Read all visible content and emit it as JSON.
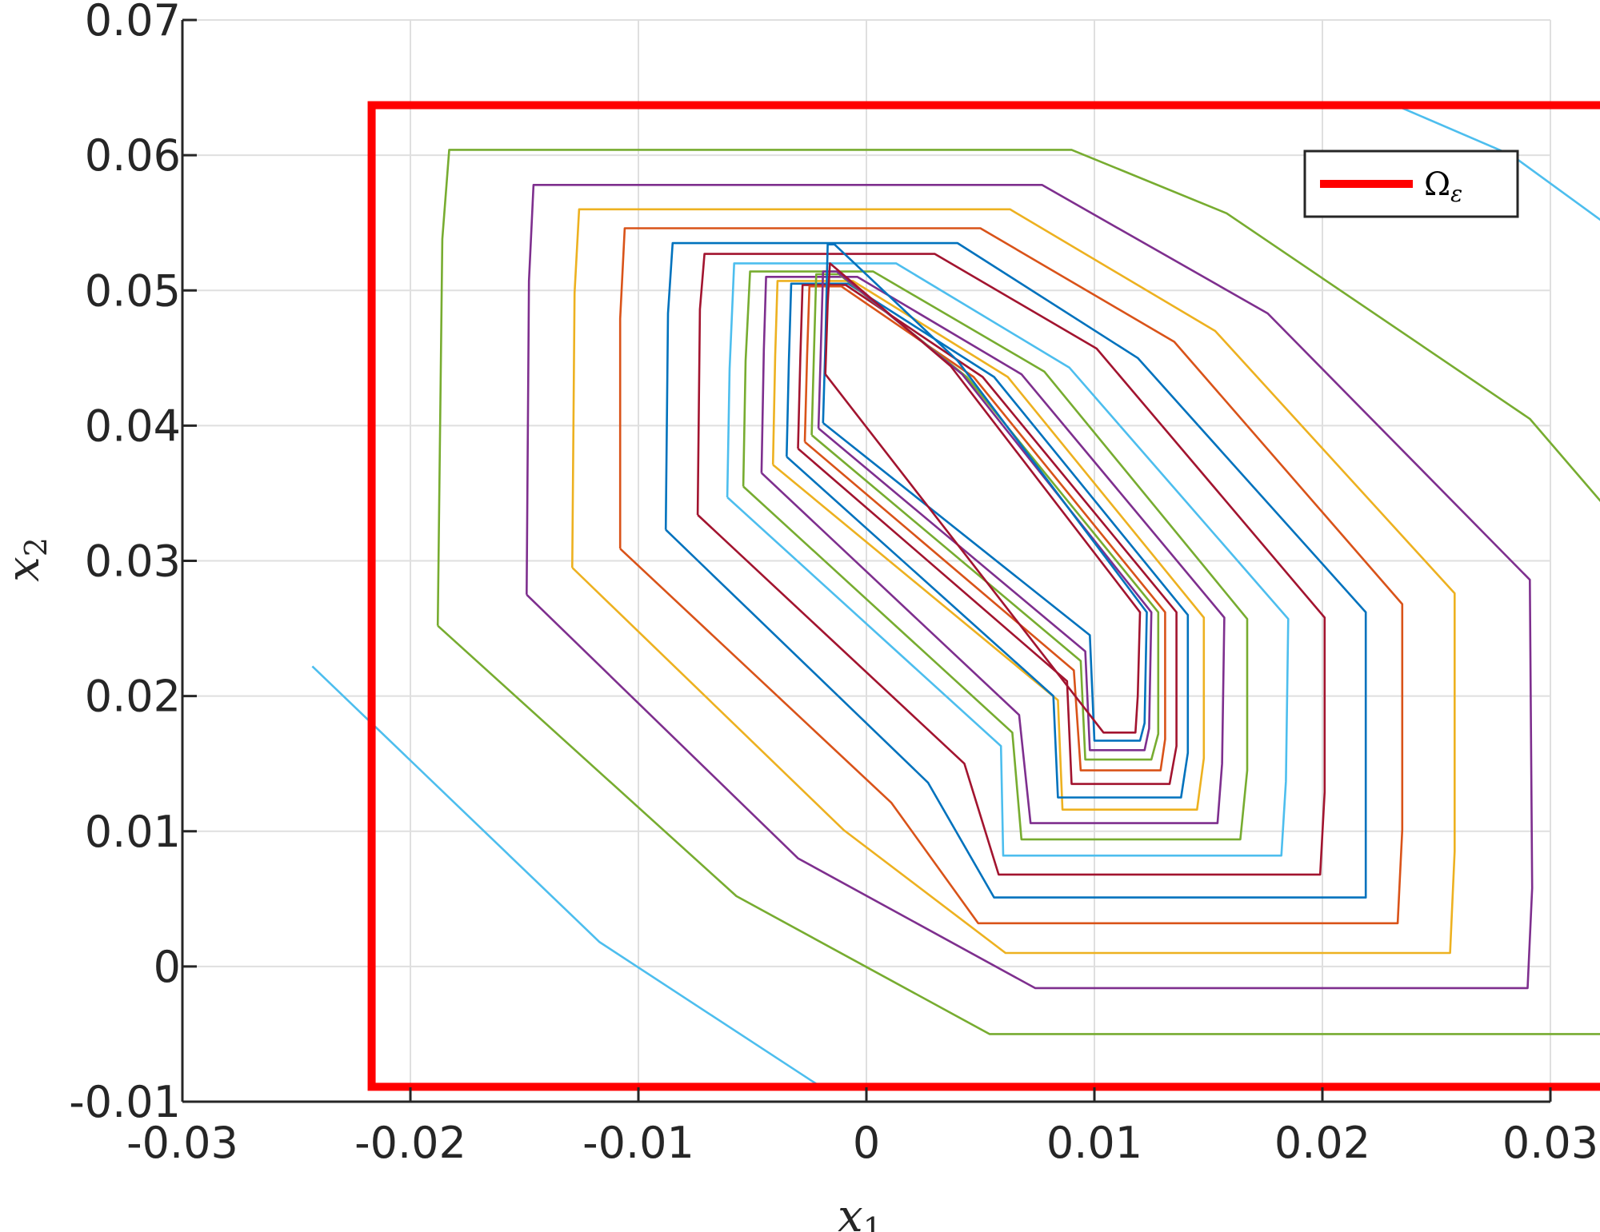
{
  "chart_data": {
    "type": "line",
    "xlabel": {
      "base": "x",
      "sub": "1"
    },
    "ylabel": {
      "base": "x",
      "sub": "2"
    },
    "xlim": [
      -0.03,
      0.03
    ],
    "ylim": [
      -0.01,
      0.07
    ],
    "xticks": [
      -0.03,
      -0.02,
      -0.01,
      0,
      0.01,
      0.02,
      0.03
    ],
    "xtick_labels": [
      "-0.03",
      "-0.02",
      "-0.01",
      "0",
      "0.01",
      "0.02",
      "0.03"
    ],
    "yticks": [
      -0.01,
      0,
      0.01,
      0.02,
      0.03,
      0.04,
      0.05,
      0.06,
      0.07
    ],
    "ytick_labels": [
      "-0.01",
      "0",
      "0.01",
      "0.02",
      "0.03",
      "0.04",
      "0.05",
      "0.06",
      "0.07"
    ],
    "grid": true,
    "legend": {
      "location": "top-right",
      "entries": [
        {
          "base": "Ω",
          "sub": "ε",
          "color": "#ff0000"
        }
      ]
    },
    "region": {
      "name": "Ω_ε",
      "color": "#ff0000",
      "x": [
        -0.0217,
        0.0362
      ],
      "y": [
        -0.0089,
        0.0637
      ]
    },
    "series": [
      {
        "color": "#4dbeee",
        "x": [
          -0.0243,
          -0.0117,
          -0.002
        ],
        "y": [
          0.0222,
          0.0018,
          -0.0089
        ]
      },
      {
        "color": "#4dbeee",
        "x": [
          0.0232,
          0.0283,
          0.034,
          0.0362
        ],
        "y": [
          0.0637,
          0.06,
          0.053,
          0.0427
        ]
      },
      {
        "color": "#77ac30",
        "x": [
          -0.0188,
          -0.0186,
          -0.0183,
          0.009,
          0.0158,
          0.0291,
          0.0343,
          0.0343,
          0.0339,
          0.0054,
          -0.0057,
          -0.0188
        ],
        "y": [
          0.0252,
          0.0538,
          0.0604,
          0.0604,
          0.0557,
          0.0405,
          0.0303,
          0.0023,
          -0.005,
          -0.005,
          0.0052,
          0.0252
        ]
      },
      {
        "color": "#7e2f8e",
        "x": [
          -0.0149,
          -0.0148,
          -0.0146,
          0.0077,
          0.0176,
          0.0291,
          0.0292,
          0.029,
          0.0074,
          -0.003,
          -0.0149
        ],
        "y": [
          0.0275,
          0.0507,
          0.0578,
          0.0578,
          0.0483,
          0.0286,
          0.0058,
          -0.0016,
          -0.0016,
          0.008,
          0.0275
        ]
      },
      {
        "color": "#edb120",
        "x": [
          -0.0129,
          -0.0128,
          -0.0126,
          0.0063,
          0.0153,
          0.0258,
          0.0258,
          0.0256,
          0.0061,
          -0.001,
          -0.0129
        ],
        "y": [
          0.0295,
          0.0498,
          0.056,
          0.056,
          0.047,
          0.0276,
          0.0085,
          0.001,
          0.001,
          0.0101,
          0.0295
        ]
      },
      {
        "color": "#d95319",
        "x": [
          -0.0108,
          -0.0108,
          -0.0106,
          0.005,
          0.0135,
          0.0235,
          0.0235,
          0.0233,
          0.0049,
          0.0011,
          -0.0108
        ],
        "y": [
          0.0309,
          0.0479,
          0.0546,
          0.0546,
          0.0462,
          0.0268,
          0.0101,
          0.0032,
          0.0032,
          0.0121,
          0.0309
        ]
      },
      {
        "color": "#0072bd",
        "x": [
          -0.0088,
          -0.0087,
          -0.0085,
          0.004,
          0.0119,
          0.0219,
          0.0219,
          0.0219,
          0.0056,
          0.0027,
          -0.0088
        ],
        "y": [
          0.0323,
          0.0483,
          0.0535,
          0.0535,
          0.045,
          0.0262,
          0.0114,
          0.0051,
          0.0051,
          0.0136,
          0.0323
        ]
      },
      {
        "color": "#a2142f",
        "x": [
          -0.0074,
          -0.0073,
          -0.0071,
          0.003,
          0.0101,
          0.0201,
          0.0201,
          0.0199,
          0.0058,
          0.0043,
          -0.0074
        ],
        "y": [
          0.0334,
          0.0486,
          0.0527,
          0.0527,
          0.0457,
          0.0258,
          0.0129,
          0.0068,
          0.0068,
          0.015,
          0.0334
        ]
      },
      {
        "color": "#4dbeee",
        "x": [
          -0.0061,
          -0.006,
          -0.0058,
          0.0013,
          0.0089,
          0.0185,
          0.0184,
          0.0182,
          0.006,
          0.0059,
          -0.0061
        ],
        "y": [
          0.0347,
          0.0442,
          0.052,
          0.052,
          0.0443,
          0.0257,
          0.0137,
          0.0082,
          0.0082,
          0.0163,
          0.0347
        ]
      },
      {
        "color": "#77ac30",
        "x": [
          -0.0054,
          -0.0053,
          -0.0051,
          0.0003,
          0.0078,
          0.0167,
          0.0167,
          0.0164,
          0.0068,
          0.0064,
          -0.0054
        ],
        "y": [
          0.0355,
          0.0448,
          0.0514,
          0.0514,
          0.044,
          0.0257,
          0.0145,
          0.0094,
          0.0094,
          0.0173,
          0.0355
        ]
      },
      {
        "color": "#7e2f8e",
        "x": [
          -0.0046,
          -0.0045,
          -0.0044,
          -0.0004,
          0.0068,
          0.0157,
          0.0156,
          0.0154,
          0.0072,
          0.0067,
          -0.0046
        ],
        "y": [
          0.0365,
          0.0456,
          0.051,
          0.051,
          0.0438,
          0.0258,
          0.015,
          0.0106,
          0.0106,
          0.0186,
          0.0365
        ]
      },
      {
        "color": "#edb120",
        "x": [
          -0.0041,
          -0.004,
          -0.0039,
          -0.0006,
          0.0062,
          0.0148,
          0.0148,
          0.0145,
          0.0086,
          0.0084,
          -0.0041
        ],
        "y": [
          0.0371,
          0.0452,
          0.0507,
          0.0507,
          0.0436,
          0.0258,
          0.0154,
          0.0116,
          0.0116,
          0.0197,
          0.0371
        ]
      },
      {
        "color": "#0072bd",
        "x": [
          -0.0035,
          -0.0034,
          -0.0033,
          -0.0008,
          0.0056,
          0.0141,
          0.0141,
          0.0138,
          0.0084,
          0.0082,
          -0.0035
        ],
        "y": [
          0.0377,
          0.0448,
          0.0505,
          0.0505,
          0.0436,
          0.026,
          0.0158,
          0.0125,
          0.0125,
          0.02,
          0.0377
        ]
      },
      {
        "color": "#a2142f",
        "x": [
          -0.003,
          -0.0029,
          -0.0028,
          -0.0009,
          0.0051,
          0.0136,
          0.0136,
          0.0133,
          0.009,
          0.0088,
          -0.003
        ],
        "y": [
          0.0383,
          0.045,
          0.0504,
          0.0504,
          0.0436,
          0.0262,
          0.0163,
          0.0135,
          0.0135,
          0.0211,
          0.0383
        ]
      },
      {
        "color": "#d95319",
        "x": [
          -0.0027,
          -0.0026,
          -0.0025,
          -0.0011,
          0.0047,
          0.0131,
          0.0131,
          0.0129,
          0.0094,
          0.0091,
          -0.0027
        ],
        "y": [
          0.0388,
          0.0452,
          0.0503,
          0.0503,
          0.0436,
          0.0262,
          0.0168,
          0.0145,
          0.0145,
          0.0219,
          0.0388
        ]
      },
      {
        "color": "#77ac30",
        "x": [
          -0.0024,
          -0.0023,
          -0.0022,
          -0.0012,
          0.0044,
          0.0128,
          0.0128,
          0.0125,
          0.0096,
          0.0094,
          -0.0024
        ],
        "y": [
          0.0393,
          0.0455,
          0.0512,
          0.0512,
          0.0436,
          0.0262,
          0.0172,
          0.0153,
          0.0153,
          0.0226,
          0.0393
        ]
      },
      {
        "color": "#7e2f8e",
        "x": [
          -0.0021,
          -0.002,
          -0.0019,
          -0.0013,
          0.0042,
          0.0125,
          0.0124,
          0.0122,
          0.0098,
          0.0096,
          -0.0021
        ],
        "y": [
          0.0398,
          0.0456,
          0.0514,
          0.0514,
          0.0438,
          0.0262,
          0.0176,
          0.016,
          0.016,
          0.0233,
          0.0398
        ]
      },
      {
        "color": "#0072bd",
        "x": [
          -0.0019,
          -0.0018,
          -0.0017,
          -0.0014,
          0.004,
          0.0123,
          0.0122,
          0.012,
          0.01,
          0.0098,
          -0.0019
        ],
        "y": [
          0.0402,
          0.046,
          0.0534,
          0.0534,
          0.0448,
          0.0262,
          0.018,
          0.0167,
          0.0167,
          0.0245,
          0.0402
        ]
      },
      {
        "color": "#a2142f",
        "x": [
          -0.0018,
          -0.0017,
          -0.0016,
          0.0037,
          0.012,
          0.0119,
          0.0118,
          0.0104,
          -0.0018
        ],
        "y": [
          0.0438,
          0.049,
          0.052,
          0.0444,
          0.0262,
          0.02,
          0.0173,
          0.0173,
          0.0438
        ]
      }
    ]
  }
}
